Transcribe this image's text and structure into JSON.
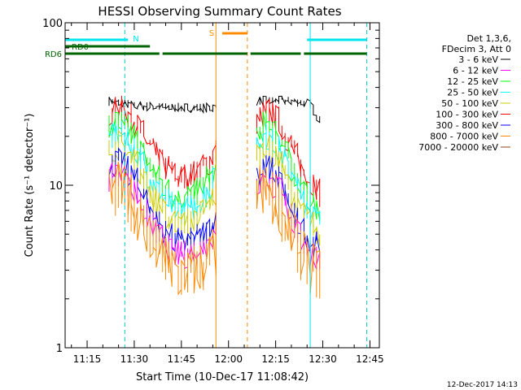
{
  "chart_data": {
    "type": "line",
    "title": "HESSI Observing Summary Count Rates",
    "xlabel": "Start Time (10-Dec-17 11:08:42)",
    "ylabel": "Count Rate (s⁻¹ detector⁻¹)",
    "yscale": "log",
    "ylim": [
      1,
      100
    ],
    "xlim": [
      "11:08",
      "12:48"
    ],
    "x_ticks": [
      "11:15",
      "11:30",
      "11:45",
      "12:00",
      "12:15",
      "12:30",
      "12:45"
    ],
    "y_ticks": [
      "1",
      "10",
      "100"
    ],
    "legend": {
      "position": "right",
      "header": [
        "Det 1,3,6,",
        "FDecim 3, Att 0"
      ],
      "entries": [
        {
          "label": "3 - 6 keV",
          "color": "#000000"
        },
        {
          "label": "6 - 12 keV",
          "color": "#ff00ff"
        },
        {
          "label": "12 - 25 keV",
          "color": "#00ff00"
        },
        {
          "label": "25 - 50 keV",
          "color": "#00ffff"
        },
        {
          "label": "50 - 100 keV",
          "color": "#cccc00"
        },
        {
          "label": "100 - 300 keV",
          "color": "#ff0000"
        },
        {
          "label": "300 - 800 keV",
          "color": "#0000ff"
        },
        {
          "label": "800 - 7000 keV",
          "color": "#ff8800"
        },
        {
          "label": "7000 - 20000 keV",
          "color": "#8b4513"
        }
      ]
    },
    "flags": {
      "N": {
        "label": "N",
        "color": "#00e5ee",
        "intervals": [
          [
            "11:08",
            "11:28"
          ],
          [
            "12:25",
            "12:44"
          ]
        ]
      },
      "S": {
        "label": "S",
        "color": "#ff8c00",
        "intervals": [
          [
            "11:58",
            "12:06"
          ]
        ]
      },
      "RD0": {
        "label": "RD0",
        "color": "#006400",
        "intervals": [
          [
            "11:08",
            "11:35"
          ]
        ]
      },
      "RD6": {
        "label": "RD6",
        "color": "#006400",
        "intervals": [
          [
            "11:08",
            "11:38"
          ],
          [
            "11:39",
            "12:06"
          ],
          [
            "12:07",
            "12:23"
          ],
          [
            "12:24",
            "12:44"
          ]
        ]
      }
    },
    "vlines": [
      {
        "t": "11:27",
        "color": "#00cccc",
        "style": "dashed"
      },
      {
        "t": "11:56",
        "color": "#ff8c00",
        "style": "solid"
      },
      {
        "t": "12:06",
        "color": "#ff8c00",
        "style": "dashed"
      },
      {
        "t": "12:26",
        "color": "#00e5ee",
        "style": "solid"
      },
      {
        "t": "12:44",
        "color": "#00cccc",
        "style": "dashed"
      }
    ],
    "segments": [
      {
        "start": "11:22",
        "end": "11:56"
      },
      {
        "start": "12:09",
        "end": "12:29"
      }
    ],
    "series": [
      {
        "name": "3 - 6 keV",
        "color": "#000000",
        "points": [
          [
            "11:22",
            33
          ],
          [
            "11:30",
            31
          ],
          [
            "11:40",
            30
          ],
          [
            "11:50",
            30
          ],
          [
            "11:56",
            30
          ],
          [
            "12:09",
            33
          ],
          [
            "12:18",
            33
          ],
          [
            "12:26",
            32
          ],
          [
            "12:29",
            25
          ]
        ]
      },
      {
        "name": "100 - 300 keV",
        "color": "#ff0000",
        "points": [
          [
            "11:22",
            27
          ],
          [
            "11:25",
            30
          ],
          [
            "11:30",
            25
          ],
          [
            "11:35",
            17
          ],
          [
            "11:40",
            13
          ],
          [
            "11:44",
            11
          ],
          [
            "11:48",
            11.5
          ],
          [
            "11:52",
            13
          ],
          [
            "11:56",
            16
          ],
          [
            "12:09",
            25
          ],
          [
            "12:12",
            29
          ],
          [
            "12:16",
            25
          ],
          [
            "12:20",
            17
          ],
          [
            "12:24",
            12
          ],
          [
            "12:29",
            9
          ]
        ]
      },
      {
        "name": "12 - 25 keV",
        "color": "#00ff00",
        "points": [
          [
            "11:22",
            22
          ],
          [
            "11:25",
            25
          ],
          [
            "11:30",
            20
          ],
          [
            "11:35",
            13
          ],
          [
            "11:40",
            9.5
          ],
          [
            "11:44",
            8
          ],
          [
            "11:48",
            8.5
          ],
          [
            "11:52",
            10
          ],
          [
            "11:56",
            13
          ],
          [
            "12:09",
            21
          ],
          [
            "12:12",
            24
          ],
          [
            "12:16",
            20
          ],
          [
            "12:20",
            13
          ],
          [
            "12:24",
            9
          ],
          [
            "12:29",
            7
          ]
        ]
      },
      {
        "name": "25 - 50 keV",
        "color": "#00ffff",
        "points": [
          [
            "11:22",
            19
          ],
          [
            "11:25",
            21
          ],
          [
            "11:30",
            17
          ],
          [
            "11:35",
            11
          ],
          [
            "11:40",
            8
          ],
          [
            "11:44",
            7
          ],
          [
            "11:48",
            7.2
          ],
          [
            "11:52",
            8.5
          ],
          [
            "11:56",
            11
          ],
          [
            "12:09",
            18
          ],
          [
            "12:12",
            20
          ],
          [
            "12:16",
            17
          ],
          [
            "12:20",
            11
          ],
          [
            "12:24",
            8
          ],
          [
            "12:29",
            6
          ]
        ]
      },
      {
        "name": "50 - 100 keV",
        "color": "#cccc00",
        "points": [
          [
            "11:22",
            16
          ],
          [
            "11:25",
            18
          ],
          [
            "11:30",
            14
          ],
          [
            "11:35",
            9
          ],
          [
            "11:40",
            6.5
          ],
          [
            "11:44",
            5.8
          ],
          [
            "11:48",
            6
          ],
          [
            "11:52",
            7
          ],
          [
            "11:56",
            9
          ],
          [
            "12:09",
            15
          ],
          [
            "12:12",
            17
          ],
          [
            "12:16",
            14
          ],
          [
            "12:20",
            9
          ],
          [
            "12:24",
            6.5
          ],
          [
            "12:29",
            5
          ]
        ]
      },
      {
        "name": "300 - 800 keV",
        "color": "#0000ff",
        "points": [
          [
            "11:22",
            13
          ],
          [
            "11:25",
            14
          ],
          [
            "11:30",
            11
          ],
          [
            "11:35",
            7
          ],
          [
            "11:40",
            5
          ],
          [
            "11:44",
            4.4
          ],
          [
            "11:48",
            4.5
          ],
          [
            "11:52",
            5
          ],
          [
            "11:56",
            6
          ],
          [
            "12:09",
            12
          ],
          [
            "12:12",
            13
          ],
          [
            "12:16",
            11
          ],
          [
            "12:20",
            7
          ],
          [
            "12:24",
            5
          ],
          [
            "12:29",
            4
          ]
        ]
      },
      {
        "name": "6 - 12 keV",
        "color": "#ff00ff",
        "points": [
          [
            "11:22",
            11
          ],
          [
            "11:25",
            12
          ],
          [
            "11:30",
            9.5
          ],
          [
            "11:35",
            6
          ],
          [
            "11:40",
            4.2
          ],
          [
            "11:44",
            3.7
          ],
          [
            "11:48",
            3.8
          ],
          [
            "11:52",
            4.2
          ],
          [
            "11:56",
            5
          ],
          [
            "12:09",
            10
          ],
          [
            "12:12",
            11
          ],
          [
            "12:16",
            9.5
          ],
          [
            "12:20",
            6
          ],
          [
            "12:24",
            4.3
          ],
          [
            "12:29",
            3.5
          ]
        ]
      },
      {
        "name": "800 - 7000 keV",
        "color": "#ff8800",
        "points": [
          [
            "11:22",
            9
          ],
          [
            "11:25",
            9.5
          ],
          [
            "11:30",
            7.5
          ],
          [
            "11:35",
            4.8
          ],
          [
            "11:40",
            3.3
          ],
          [
            "11:44",
            2.8
          ],
          [
            "11:48",
            2.9
          ],
          [
            "11:52",
            3.2
          ],
          [
            "11:56",
            4
          ],
          [
            "12:09",
            9
          ],
          [
            "12:12",
            9.3
          ],
          [
            "12:16",
            7.5
          ],
          [
            "12:20",
            5
          ],
          [
            "12:24",
            3.5
          ],
          [
            "12:29",
            2.8
          ]
        ]
      }
    ],
    "footer_date": "12-Dec-2017 14:13"
  }
}
